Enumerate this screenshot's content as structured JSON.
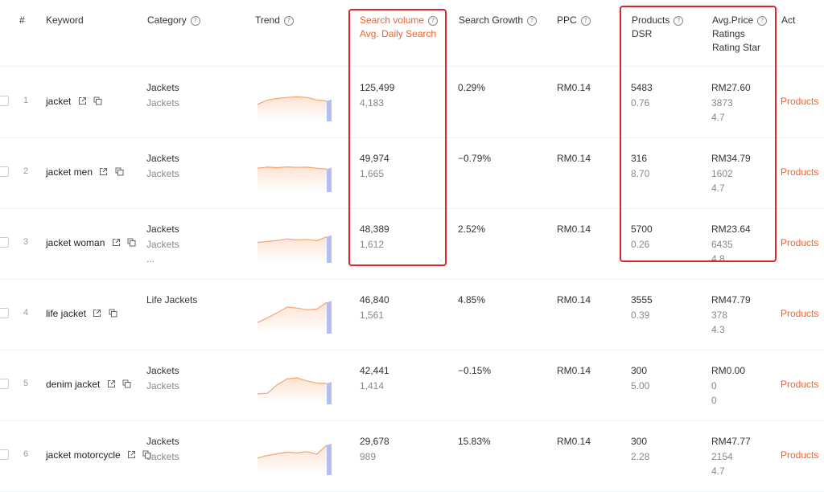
{
  "header": {
    "index": "#",
    "keyword": "Keyword",
    "category": "Category",
    "trend": "Trend",
    "search_volume": "Search volume",
    "avg_daily": "Avg. Daily Search",
    "search_growth": "Search Growth",
    "ppc": "PPC",
    "products": "Products",
    "dsr": "DSR",
    "avg_price": "Avg.Price",
    "ratings": "Ratings",
    "rating_star": "Rating Star",
    "action": "Act"
  },
  "rows": [
    {
      "index": "1",
      "keyword": "jacket",
      "cat1": "Jackets",
      "cat2": "Jackets",
      "cat3": "",
      "volume": "125,499",
      "daily": "4,183",
      "growth": "0.29%",
      "ppc": "RM0.14",
      "products": "5483",
      "dsr": "0.76",
      "price": "RM27.60",
      "ratings": "3873",
      "star": "4.7",
      "action": "Products",
      "trend": [
        0.35,
        0.52,
        0.58,
        0.62,
        0.64,
        0.62,
        0.52,
        0.48
      ]
    },
    {
      "index": "2",
      "keyword": "jacket men",
      "cat1": "Jackets",
      "cat2": "Jackets",
      "cat3": "",
      "volume": "49,974",
      "daily": "1,665",
      "growth": "−0.79%",
      "ppc": "RM0.14",
      "products": "316",
      "dsr": "8.70",
      "price": "RM34.79",
      "ratings": "1602",
      "star": "4.7",
      "action": "Products",
      "trend": [
        0.62,
        0.66,
        0.64,
        0.67,
        0.65,
        0.66,
        0.62,
        0.58
      ]
    },
    {
      "index": "3",
      "keyword": "jacket woman",
      "cat1": "Jackets",
      "cat2": "Jackets",
      "cat3": "...",
      "volume": "48,389",
      "daily": "1,612",
      "growth": "2.52%",
      "ppc": "RM0.14",
      "products": "5700",
      "dsr": "0.26",
      "price": "RM23.64",
      "ratings": "6435",
      "star": "4.8",
      "action": "Products",
      "trend": [
        0.48,
        0.52,
        0.56,
        0.62,
        0.58,
        0.6,
        0.55,
        0.7
      ]
    },
    {
      "index": "4",
      "keyword": "life jacket",
      "cat1": "Life Jackets",
      "cat2": "",
      "cat3": "",
      "volume": "46,840",
      "daily": "1,561",
      "growth": "4.85%",
      "ppc": "RM0.14",
      "products": "3555",
      "dsr": "0.39",
      "price": "RM47.79",
      "ratings": "378",
      "star": "4.3",
      "action": "Products",
      "trend": [
        0.12,
        0.3,
        0.5,
        0.72,
        0.68,
        0.62,
        0.64,
        0.9
      ]
    },
    {
      "index": "5",
      "keyword": "denim jacket",
      "cat1": "Jackets",
      "cat2": "Jackets",
      "cat3": "",
      "volume": "42,441",
      "daily": "1,414",
      "growth": "−0.15%",
      "ppc": "RM0.14",
      "products": "300",
      "dsr": "5.00",
      "price": "RM0.00",
      "ratings": "0",
      "star": "0",
      "action": "Products",
      "trend": [
        0.1,
        0.12,
        0.45,
        0.68,
        0.72,
        0.6,
        0.52,
        0.5
      ]
    },
    {
      "index": "6",
      "keyword": "jacket motorcycle",
      "cat1": "Jackets",
      "cat2": "Jackets",
      "cat3": "",
      "volume": "29,678",
      "daily": "989",
      "growth": "15.83%",
      "ppc": "RM0.14",
      "products": "300",
      "dsr": "2.28",
      "price": "RM47.77",
      "ratings": "2154",
      "star": "4.7",
      "action": "Products",
      "trend": [
        0.35,
        0.45,
        0.52,
        0.58,
        0.55,
        0.6,
        0.5,
        0.85
      ]
    }
  ],
  "colors": {
    "accent": "#f5602b",
    "highlight": "#e0242b",
    "trend_fill": "#fde3d3",
    "trend_line": "#f5a372",
    "trend_tail": "#9aa6f2"
  },
  "icons": {
    "external": "external-link-icon",
    "copy": "copy-icon",
    "help": "help-circle-icon"
  }
}
